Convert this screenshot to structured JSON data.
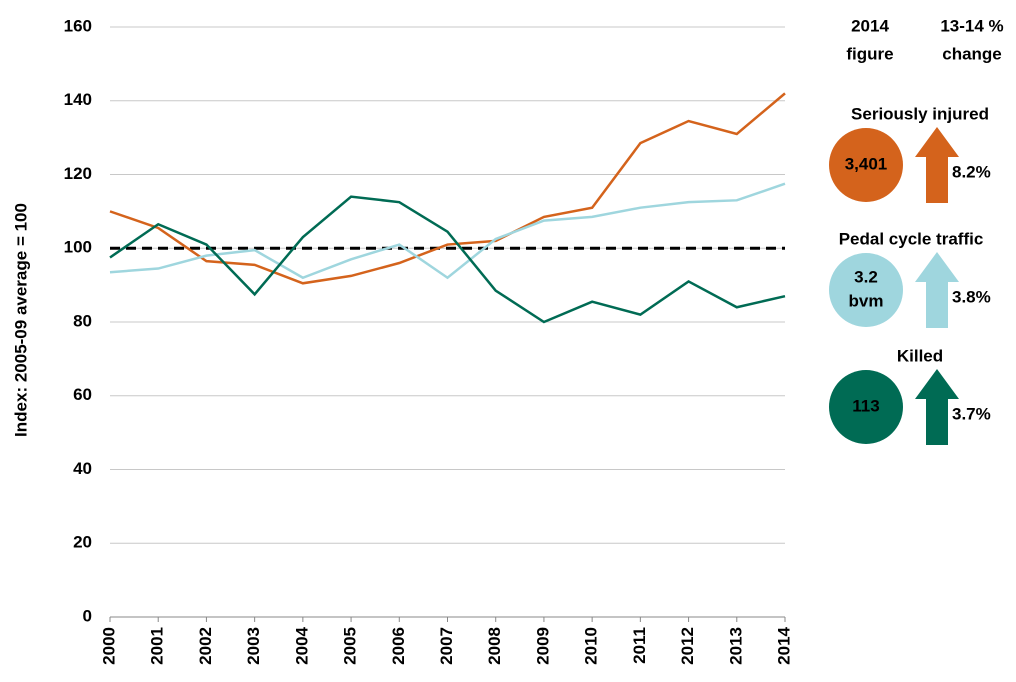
{
  "chart_data": {
    "type": "line",
    "y_label": "Index: 2005-09 average = 100",
    "categories": [
      "2000",
      "2001",
      "2002",
      "2003",
      "2004",
      "2005",
      "2006",
      "2007",
      "2008",
      "2009",
      "2010",
      "2011",
      "2012",
      "2013",
      "2014"
    ],
    "series": [
      {
        "name": "Seriously injured",
        "color": "#d4631c",
        "values": [
          110,
          105.5,
          96.5,
          95.5,
          90.5,
          92.5,
          96,
          101,
          102,
          108.5,
          111,
          128.5,
          134.5,
          131,
          142
        ],
        "figure": [
          "3,401"
        ],
        "change": "8.2%"
      },
      {
        "name": "Pedal cycle traffic",
        "color": "#9fd6de",
        "values": [
          93.5,
          94.5,
          98,
          99.5,
          92,
          97,
          101,
          92,
          102.5,
          107.5,
          108.5,
          111,
          112.5,
          113,
          117.5
        ],
        "figure": [
          "3.2",
          "bvm"
        ],
        "change": "3.8%"
      },
      {
        "name": "Killed",
        "color": "#006b54",
        "values": [
          97.5,
          106.5,
          101,
          87.5,
          103,
          114,
          112.5,
          104.5,
          88.5,
          80,
          85.5,
          82,
          91,
          84,
          87
        ],
        "figure": [
          "113"
        ],
        "change": "3.7%"
      }
    ],
    "reference_line": 100,
    "summary_headers": [
      [
        "2014",
        "figure"
      ],
      [
        "13-14 %",
        "change"
      ]
    ],
    "ylim": [
      0,
      160
    ],
    "yticks": [
      0,
      20,
      40,
      60,
      80,
      100,
      120,
      140,
      160
    ],
    "grid": true
  }
}
